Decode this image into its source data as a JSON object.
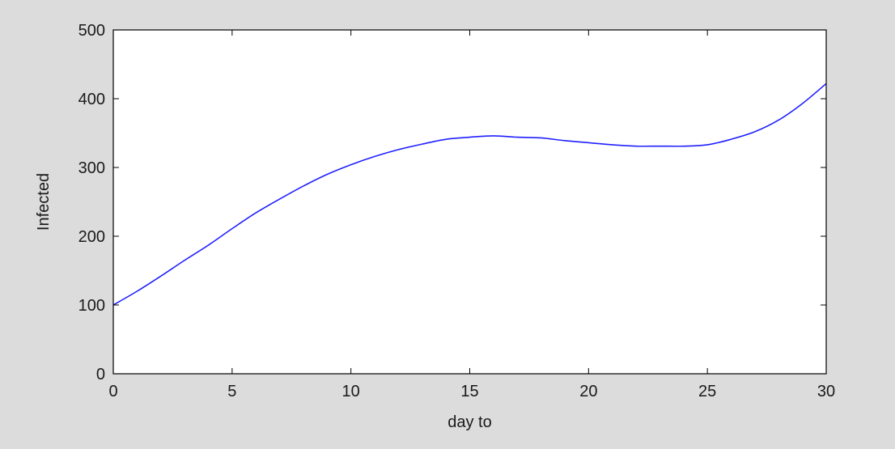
{
  "colors": {
    "figure_background": "#dcdcdc",
    "axes_background": "#ffffff",
    "axes_frame": "#000000",
    "series": "#2020ff"
  },
  "chart_data": {
    "type": "line",
    "title": "",
    "xlabel": "day to",
    "ylabel": "Infected",
    "xlim": [
      0,
      30
    ],
    "ylim": [
      0,
      500
    ],
    "xticks": [
      0,
      5,
      10,
      15,
      20,
      25,
      30
    ],
    "yticks": [
      0,
      100,
      200,
      300,
      400,
      500
    ],
    "grid": false,
    "legend": "none",
    "series": [
      {
        "color": "#2020ff",
        "x": [
          0,
          1,
          2,
          3,
          4,
          5,
          6,
          7,
          8,
          9,
          10,
          11,
          12,
          13,
          14,
          15,
          16,
          17,
          18,
          19,
          20,
          21,
          22,
          23,
          24,
          25,
          26,
          27,
          28,
          29,
          30
        ],
        "y": [
          100,
          120,
          142,
          165,
          187,
          211,
          234,
          254,
          273,
          290,
          304,
          316,
          326,
          334,
          341,
          344,
          346,
          344,
          343,
          339,
          336,
          333,
          331,
          331,
          331,
          333,
          341,
          352,
          369,
          393,
          422
        ]
      }
    ]
  }
}
